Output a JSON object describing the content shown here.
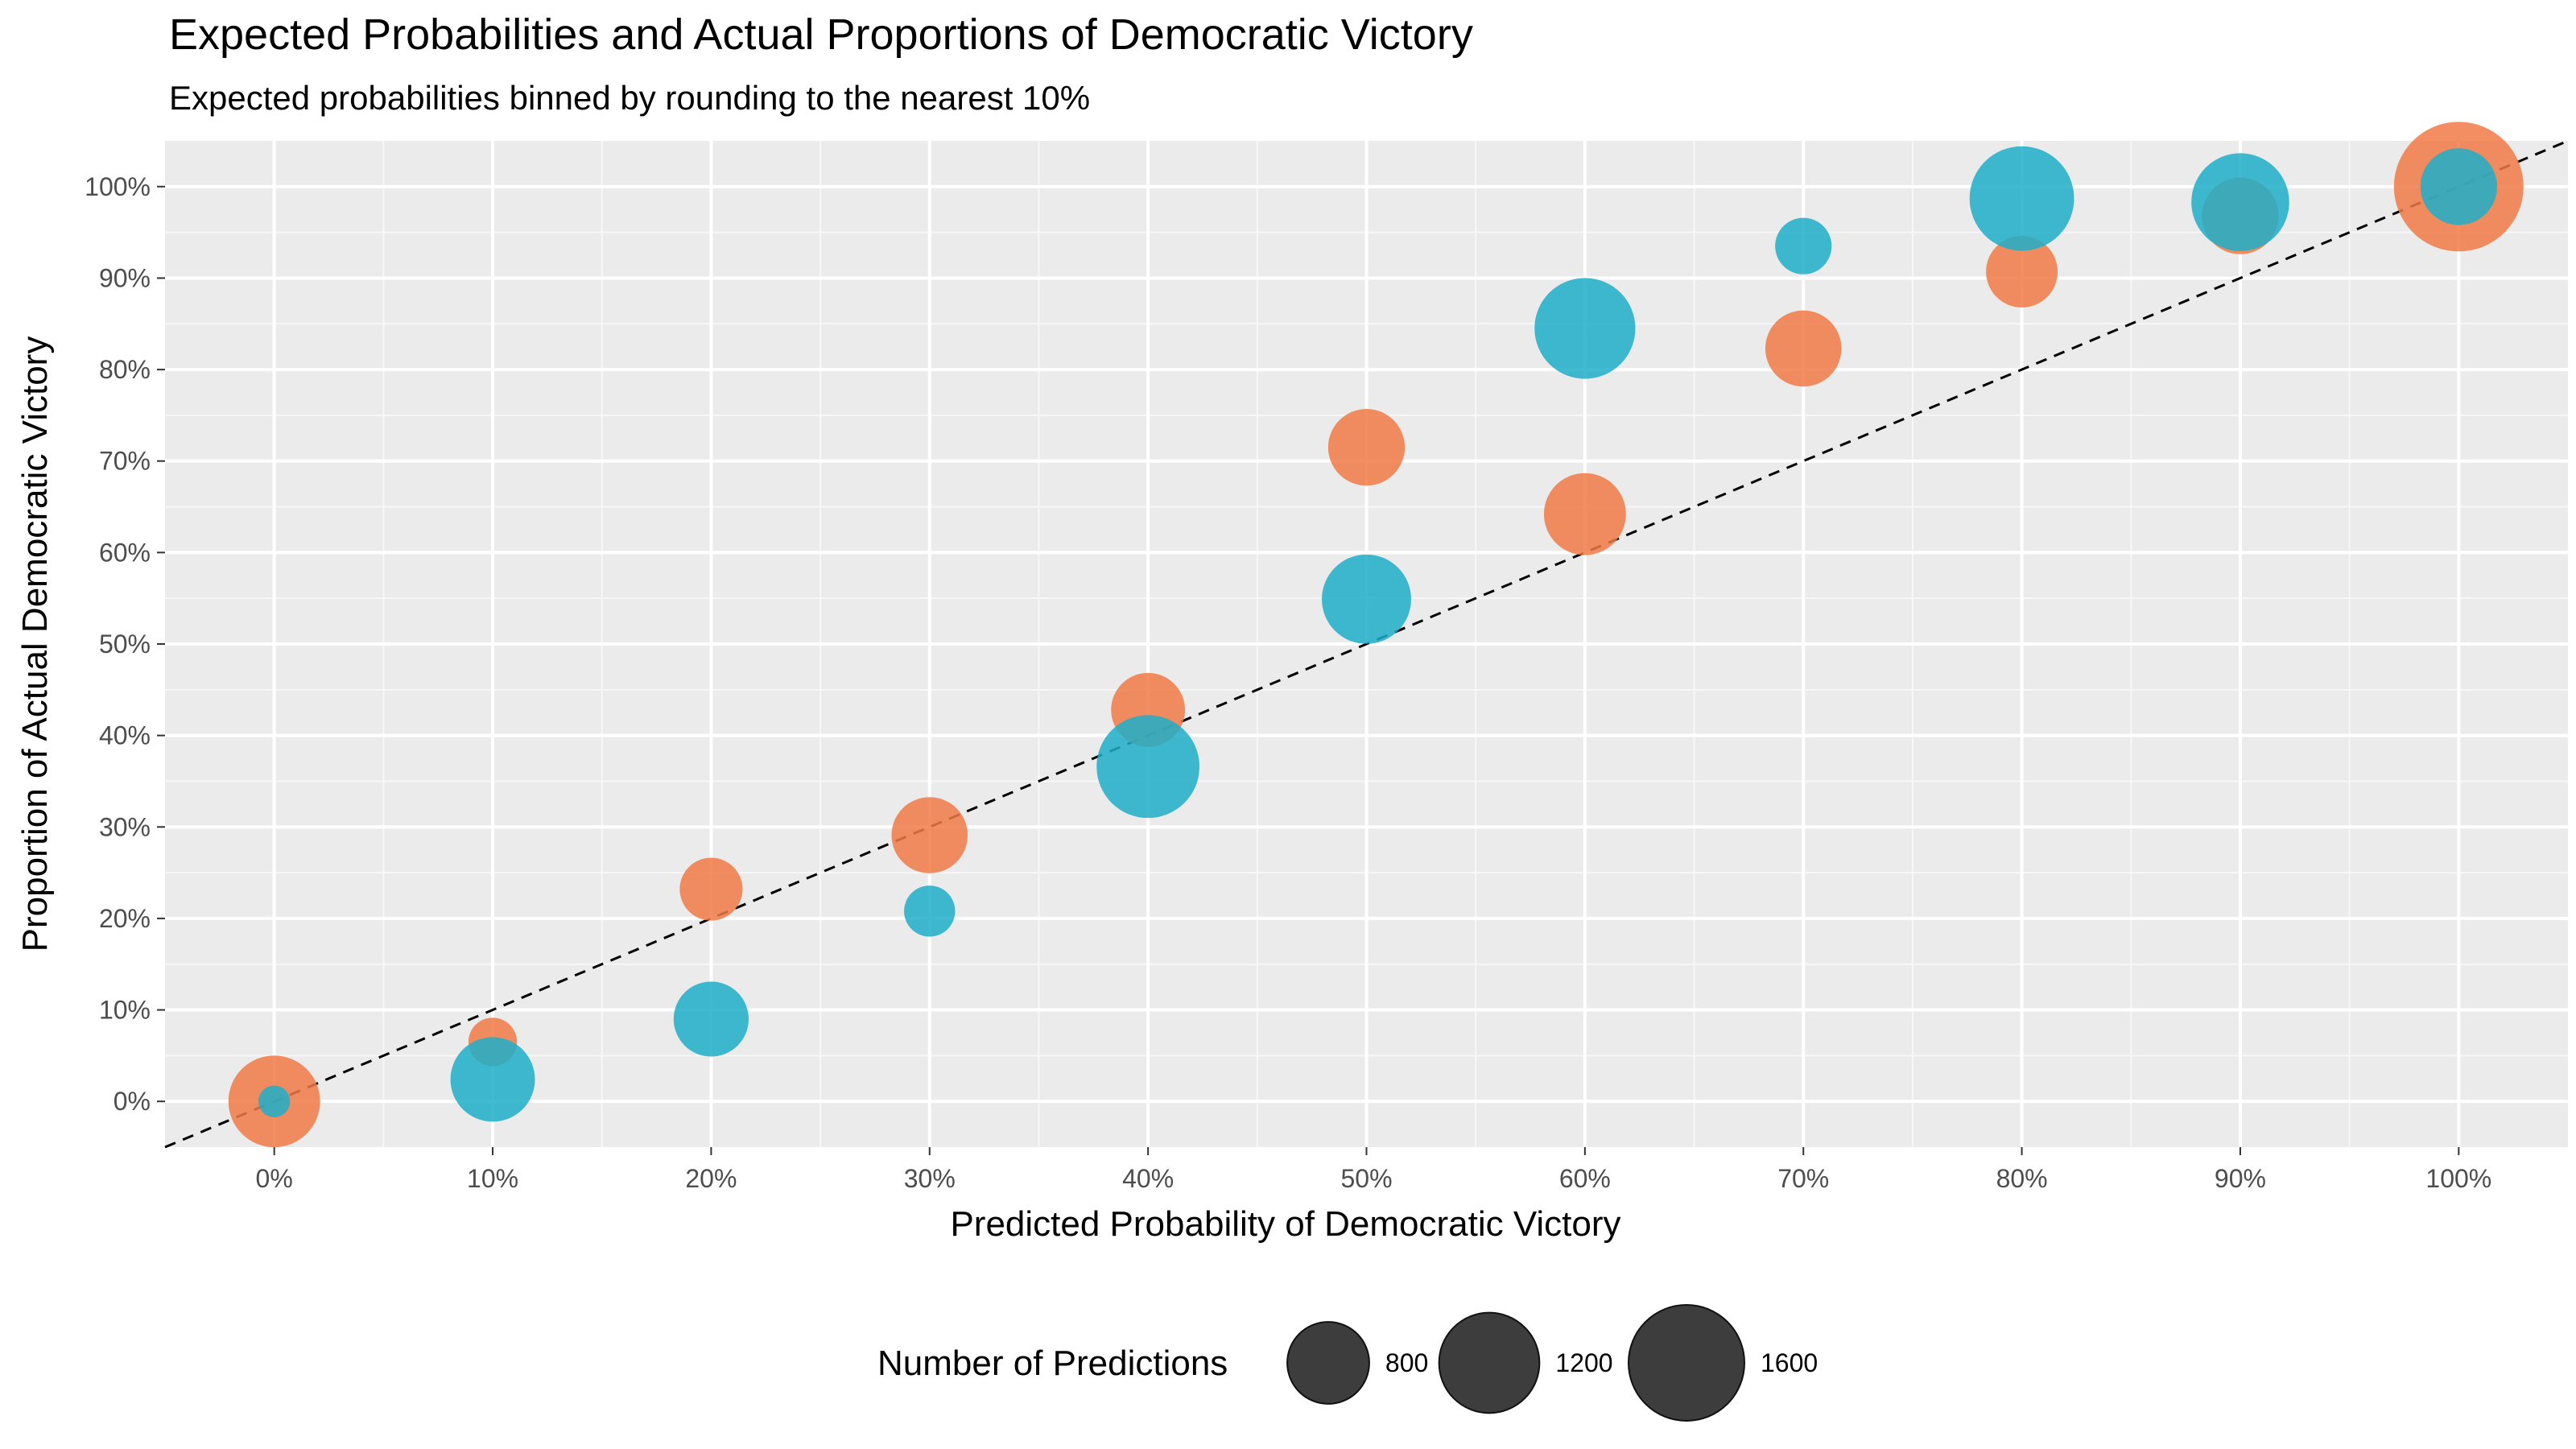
{
  "chart_data": {
    "type": "scatter",
    "title": "Expected Probabilities and Actual Proportions of Democratic Victory",
    "subtitle": "Expected probabilities binned by rounding to the nearest 10%",
    "xlabel": "Predicted Probability of Democratic Victory",
    "ylabel": "Proportion of Actual Democratic Victory",
    "xlim": [
      -0.05,
      1.05
    ],
    "ylim": [
      -0.05,
      1.05
    ],
    "x_ticks": [
      "0%",
      "10%",
      "20%",
      "30%",
      "40%",
      "50%",
      "60%",
      "70%",
      "80%",
      "90%",
      "100%"
    ],
    "y_ticks": [
      "0%",
      "10%",
      "20%",
      "30%",
      "40%",
      "50%",
      "60%",
      "70%",
      "80%",
      "90%",
      "100%"
    ],
    "grid": true,
    "reference_line": {
      "type": "dashed",
      "slope": 1,
      "intercept": 0
    },
    "legend": {
      "title": "Number of Predictions",
      "position": "bottom",
      "entries": [
        {
          "label": "800",
          "n": 800
        },
        {
          "label": "1200",
          "n": 1200
        },
        {
          "label": "1600",
          "n": 1600
        }
      ]
    },
    "series": [
      {
        "color": "#F07A45",
        "points": [
          {
            "x": 0.0,
            "y": 0.0,
            "n": 1000
          },
          {
            "x": 0.1,
            "y": 0.065,
            "n": 280
          },
          {
            "x": 0.2,
            "y": 0.232,
            "n": 470
          },
          {
            "x": 0.3,
            "y": 0.291,
            "n": 690
          },
          {
            "x": 0.4,
            "y": 0.428,
            "n": 650
          },
          {
            "x": 0.5,
            "y": 0.715,
            "n": 700
          },
          {
            "x": 0.6,
            "y": 0.642,
            "n": 800
          },
          {
            "x": 0.7,
            "y": 0.823,
            "n": 690
          },
          {
            "x": 0.8,
            "y": 0.907,
            "n": 610
          },
          {
            "x": 0.9,
            "y": 0.968,
            "n": 700
          },
          {
            "x": 1.0,
            "y": 1.0,
            "n": 2000
          }
        ]
      },
      {
        "color": "#1FAEC8",
        "points": [
          {
            "x": 0.0,
            "y": 0.0,
            "n": 120
          },
          {
            "x": 0.1,
            "y": 0.024,
            "n": 850
          },
          {
            "x": 0.2,
            "y": 0.09,
            "n": 670
          },
          {
            "x": 0.3,
            "y": 0.208,
            "n": 310
          },
          {
            "x": 0.4,
            "y": 0.366,
            "n": 1260
          },
          {
            "x": 0.5,
            "y": 0.549,
            "n": 950
          },
          {
            "x": 0.6,
            "y": 0.845,
            "n": 1210
          },
          {
            "x": 0.7,
            "y": 0.935,
            "n": 380
          },
          {
            "x": 0.8,
            "y": 0.987,
            "n": 1300
          },
          {
            "x": 0.9,
            "y": 0.983,
            "n": 1140
          },
          {
            "x": 1.0,
            "y": 1.0,
            "n": 700
          }
        ]
      }
    ]
  }
}
